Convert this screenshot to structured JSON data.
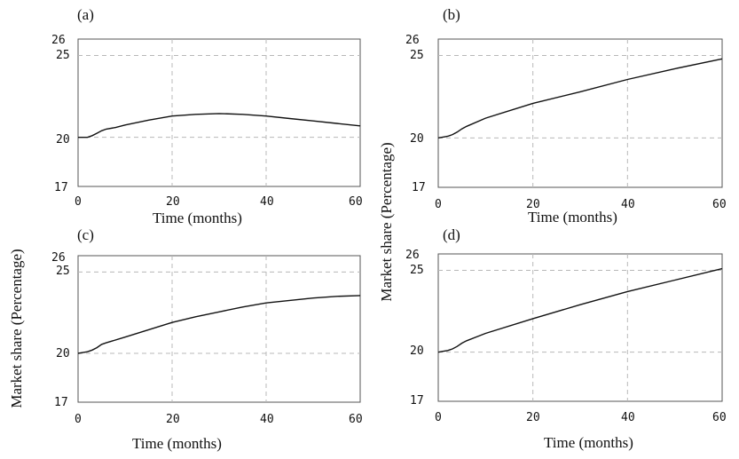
{
  "chart_data": [
    {
      "type": "line",
      "panel_label": "(a)",
      "xlabel": "Time (months)",
      "ylabel": "",
      "xlim": [
        0,
        60
      ],
      "ylim": [
        17,
        26
      ],
      "xticks": [
        "0",
        "20",
        "40",
        "60"
      ],
      "yticks": [
        "17",
        "20",
        "25",
        "26"
      ],
      "grid": true,
      "x": [
        0,
        1,
        2,
        3,
        4,
        5,
        6,
        8,
        10,
        15,
        20,
        25,
        30,
        35,
        40,
        45,
        50,
        55,
        60
      ],
      "series": [
        {
          "values": [
            20.0,
            20.0,
            20.0,
            20.1,
            20.25,
            20.4,
            20.5,
            20.6,
            20.75,
            21.05,
            21.3,
            21.4,
            21.45,
            21.4,
            21.3,
            21.15,
            21.0,
            20.85,
            20.7
          ]
        }
      ]
    },
    {
      "type": "line",
      "panel_label": "(b)",
      "xlabel": "Time (months)",
      "ylabel": "",
      "xlim": [
        0,
        60
      ],
      "ylim": [
        17,
        26
      ],
      "xticks": [
        "0",
        "20",
        "40",
        "60"
      ],
      "yticks": [
        "17",
        "20",
        "25",
        "26"
      ],
      "grid": true,
      "x": [
        0,
        1,
        2,
        3,
        4,
        5,
        6,
        10,
        20,
        30,
        40,
        50,
        60
      ],
      "series": [
        {
          "values": [
            20.0,
            20.05,
            20.1,
            20.2,
            20.35,
            20.55,
            20.7,
            21.2,
            22.1,
            22.8,
            23.55,
            24.2,
            24.8
          ]
        }
      ]
    },
    {
      "type": "line",
      "panel_label": "(c)",
      "xlabel": "Time (months)",
      "ylabel": "Market share (Percentage)",
      "xlim": [
        0,
        60
      ],
      "ylim": [
        17,
        26
      ],
      "xticks": [
        "0",
        "20",
        "40",
        "60"
      ],
      "yticks": [
        "17",
        "20",
        "25",
        "26"
      ],
      "grid": true,
      "x": [
        0,
        1,
        2,
        3,
        4,
        5,
        6,
        10,
        15,
        20,
        25,
        30,
        35,
        40,
        45,
        50,
        55,
        60
      ],
      "series": [
        {
          "values": [
            20.0,
            20.05,
            20.1,
            20.2,
            20.35,
            20.55,
            20.65,
            21.0,
            21.45,
            21.9,
            22.25,
            22.55,
            22.85,
            23.1,
            23.25,
            23.4,
            23.5,
            23.55
          ]
        }
      ]
    },
    {
      "type": "line",
      "panel_label": "(d)",
      "xlabel": "Time (months)",
      "ylabel": "Market share (Percentage)",
      "xlim": [
        0,
        60
      ],
      "ylim": [
        17,
        26
      ],
      "xticks": [
        "0",
        "20",
        "40",
        "60"
      ],
      "yticks": [
        "17",
        "20",
        "25",
        "26"
      ],
      "grid": true,
      "x": [
        0,
        1,
        2,
        3,
        4,
        5,
        6,
        10,
        20,
        30,
        40,
        50,
        60
      ],
      "series": [
        {
          "values": [
            20.0,
            20.05,
            20.1,
            20.2,
            20.35,
            20.55,
            20.7,
            21.15,
            22.05,
            22.9,
            23.7,
            24.4,
            25.1
          ]
        }
      ]
    }
  ]
}
